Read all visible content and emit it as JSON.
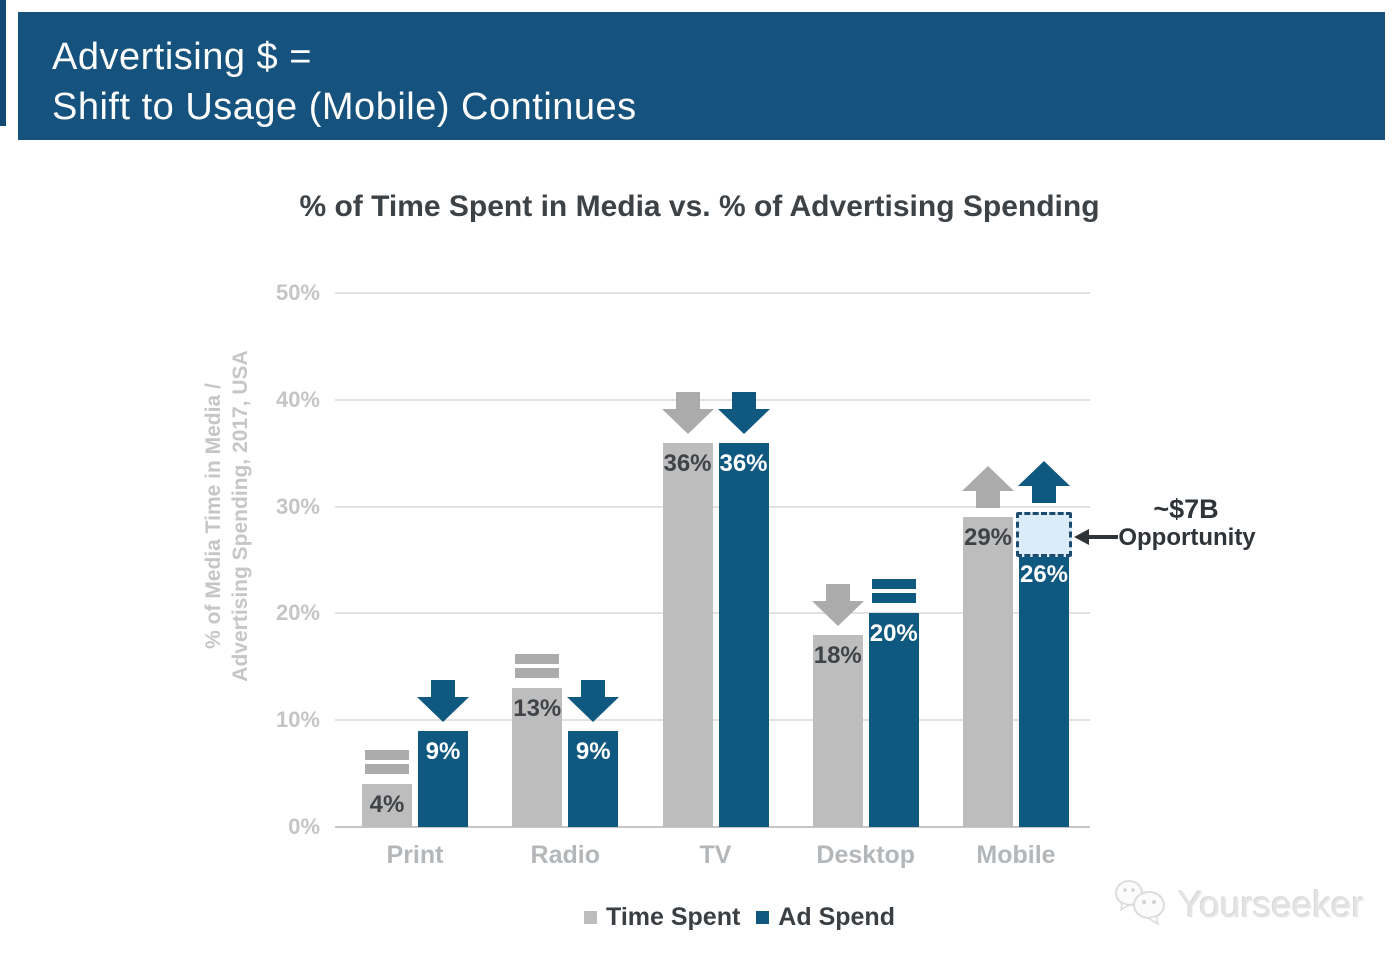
{
  "banner": {
    "title_line1": "Advertising $ =",
    "title_line2": "Shift to Usage (Mobile) Continues"
  },
  "chart_title": "% of Time Spent in Media vs. % of Advertising Spending",
  "colors": {
    "banner_bg": "#15527E",
    "left_stripe": "#134A74",
    "bar_gray": "#BDBDBD",
    "bar_blue": "#0F5880",
    "icon_gray": "#ABABAB",
    "icon_blue": "#0F5880",
    "label_on_gray": "#3F4348",
    "label_on_blue": "#FFFFFF",
    "grid_line": "#E2E2E2",
    "axis_line": "#C6C6C6",
    "annotation_text": "#2F3439",
    "gap_box_fill": "#D9ECF8",
    "gap_box_border": "#1D4A6D"
  },
  "chart_data": {
    "type": "bar",
    "title": "% of Time Spent in Media vs. % of Advertising Spending",
    "ylabel_line1": "% of Media Time in Media /",
    "ylabel_line2": "Advertising Spending, 2017, USA",
    "categories": [
      "Print",
      "Radio",
      "TV",
      "Desktop",
      "Mobile"
    ],
    "series": [
      {
        "name": "Time Spent",
        "color": "gray",
        "values": [
          4,
          13,
          36,
          18,
          29
        ],
        "labels": [
          "4%",
          "13%",
          "36%",
          "18%",
          "29%"
        ],
        "trend": [
          "flat",
          "flat",
          "down",
          "down",
          "up"
        ]
      },
      {
        "name": "Ad Spend",
        "color": "blue",
        "values": [
          9,
          9,
          36,
          20,
          26
        ],
        "labels": [
          "9%",
          "9%",
          "36%",
          "20%",
          "26%"
        ],
        "trend": [
          "down",
          "down",
          "down",
          "flat",
          "up"
        ]
      }
    ],
    "yticks": [
      {
        "label": "50%",
        "value": 50
      },
      {
        "label": "40%",
        "value": 40
      },
      {
        "label": "30%",
        "value": 30
      },
      {
        "label": "20%",
        "value": 20
      },
      {
        "label": "10%",
        "value": 10
      },
      {
        "label": "0%",
        "value": 0
      }
    ],
    "ylim": [
      0,
      50
    ],
    "grid": true,
    "legend_position": "bottom",
    "annotation": {
      "line1": "~$7B",
      "line2": "Opportunity",
      "category": "Mobile",
      "series": "Ad Spend",
      "gap_from": 26,
      "gap_to": 29
    }
  },
  "legend": {
    "items": [
      {
        "label": "Time Spent",
        "color": "gray"
      },
      {
        "label": "Ad Spend",
        "color": "blue"
      }
    ]
  },
  "watermark": {
    "text": "Yourseeker"
  }
}
